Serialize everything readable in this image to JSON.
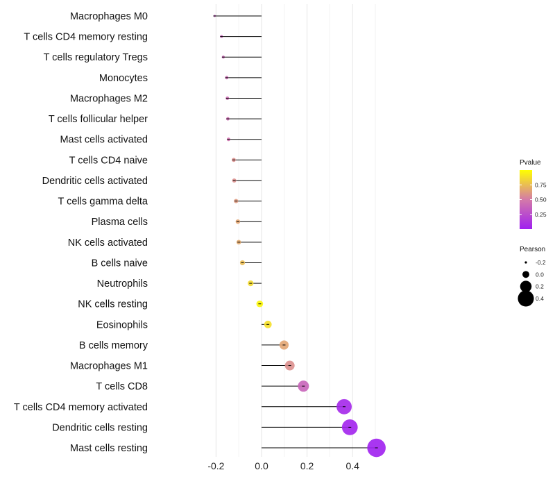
{
  "chart_data": {
    "type": "lollipop",
    "title": "",
    "xlabel": "",
    "ylabel": "",
    "xlim": [
      -0.2,
      0.5
    ],
    "x_ticks": [
      -0.2,
      0.0,
      0.2,
      0.4
    ],
    "x_tick_labels": [
      "-0.2",
      "0.0",
      "0.2",
      "0.4"
    ],
    "grid": true,
    "categories": [
      "Macrophages M0",
      "T cells CD4 memory resting",
      "T cells regulatory  Tregs",
      "Monocytes",
      "Macrophages M2",
      "T cells follicular helper",
      "Mast cells activated",
      "T cells CD4 naive",
      "Dendritic cells activated",
      "T cells gamma delta",
      "Plasma cells",
      "NK cells activated",
      "B cells naive",
      "Neutrophils",
      "NK cells resting",
      "Eosinophils",
      "B cells memory",
      "Macrophages M1",
      "T cells CD8",
      "T cells CD4 memory activated",
      "Dendritic cells resting",
      "Mast cells resting"
    ],
    "pearson": [
      -0.206,
      -0.176,
      -0.168,
      -0.153,
      -0.15,
      -0.148,
      -0.145,
      -0.122,
      -0.12,
      -0.112,
      -0.104,
      -0.1,
      -0.084,
      -0.048,
      -0.008,
      0.028,
      0.099,
      0.124,
      0.184,
      0.363,
      0.388,
      0.505
    ],
    "pvalue": [
      0.35,
      0.38,
      0.4,
      0.42,
      0.42,
      0.43,
      0.45,
      0.58,
      0.58,
      0.62,
      0.66,
      0.68,
      0.75,
      0.86,
      0.97,
      0.88,
      0.66,
      0.58,
      0.38,
      0.04,
      0.02,
      0.001
    ],
    "legend_color": {
      "title": "Pvalue",
      "ticks": [
        0.75,
        0.5,
        0.25
      ],
      "tick_labels": [
        "0.75",
        "0.50",
        "0.25"
      ],
      "range": [
        0,
        1
      ],
      "low_color": "#a020f0",
      "high_color": "#ffff00"
    },
    "legend_size": {
      "title": "Pearson",
      "values": [
        -0.2,
        0.0,
        0.2,
        0.4
      ],
      "labels": [
        "-0.2",
        "0.0",
        "0.2",
        "0.4"
      ]
    },
    "legend_placement": "right"
  }
}
